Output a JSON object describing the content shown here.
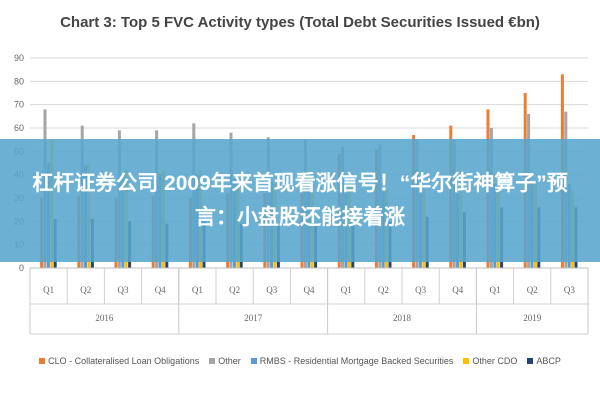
{
  "banner": {
    "headline": "杠杆证券公司 2009年来首现看涨信号！“华尔街神算子”预言：小盘股还能接着涨"
  },
  "chart_data": {
    "type": "bar",
    "title": "Chart 3: Top 5 FVC Activity types (Total Debt Securities Issued €bn)",
    "xlabel": "",
    "ylabel": "",
    "ylim": [
      0,
      90
    ],
    "yticks": [
      0,
      10,
      20,
      30,
      40,
      50,
      60,
      70,
      80,
      90
    ],
    "grid": true,
    "legend_position": "bottom",
    "categories": [
      "Q1",
      "Q2",
      "Q3",
      "Q4",
      "Q1",
      "Q2",
      "Q3",
      "Q4",
      "Q1",
      "Q2",
      "Q3",
      "Q4",
      "Q1",
      "Q2",
      "Q3"
    ],
    "year_groups": [
      {
        "label": "2016",
        "count": 4
      },
      {
        "label": "2017",
        "count": 4
      },
      {
        "label": "2018",
        "count": 4
      },
      {
        "label": "2019",
        "count": 3
      }
    ],
    "series": [
      {
        "name": "CLO - Collateralised Loan Obligations",
        "color": "#ED7D31",
        "values": [
          30,
          31,
          30,
          31,
          30,
          32,
          32,
          34,
          49,
          51,
          57,
          61,
          68,
          75,
          83
        ]
      },
      {
        "name": "Other",
        "color": "#A5A5A5",
        "values": [
          68,
          61,
          59,
          59,
          62,
          58,
          56,
          55,
          52,
          53,
          55,
          55,
          60,
          66,
          67
        ]
      },
      {
        "name": "RMBS - Residential Mortgage Backed Securities",
        "color": "#5B9BD5",
        "values": [
          45,
          44,
          40,
          40,
          40,
          38,
          37,
          35,
          34,
          33,
          32,
          32,
          36,
          37,
          36
        ]
      },
      {
        "name": "Other CDO",
        "color": "#FFC000",
        "values": [
          55,
          45,
          42,
          42,
          42,
          38,
          36,
          36,
          35,
          34,
          33,
          33,
          36,
          37,
          33
        ]
      },
      {
        "name": "ABCP",
        "color": "#264478",
        "values": [
          21,
          21,
          20,
          19,
          20,
          19,
          19,
          19,
          20,
          20,
          22,
          24,
          26,
          26,
          26
        ]
      }
    ]
  }
}
